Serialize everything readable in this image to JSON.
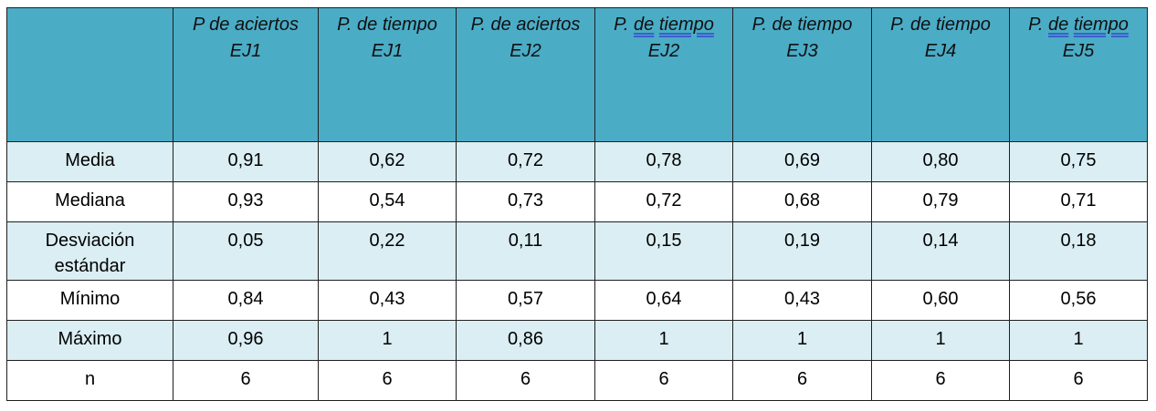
{
  "table": {
    "header": [
      {
        "parts": [
          {
            "text": ""
          }
        ]
      },
      {
        "parts": [
          {
            "text": "P de aciertos EJ1"
          }
        ]
      },
      {
        "parts": [
          {
            "text": "P. de tiempo EJ1"
          }
        ]
      },
      {
        "parts": [
          {
            "text": "P. de aciertos EJ2"
          }
        ]
      },
      {
        "parts": [
          {
            "text": "P. "
          },
          {
            "text": "de",
            "spell": true
          },
          {
            "text": " "
          },
          {
            "text": "tiempo",
            "spell": true
          },
          {
            "text": " EJ2"
          }
        ]
      },
      {
        "parts": [
          {
            "text": "P. de tiempo EJ3"
          }
        ]
      },
      {
        "parts": [
          {
            "text": "P. de tiempo EJ4"
          }
        ]
      },
      {
        "parts": [
          {
            "text": "P. "
          },
          {
            "text": "de",
            "spell": true
          },
          {
            "text": " "
          },
          {
            "text": "tiempo",
            "spell": true
          },
          {
            "text": " EJ5"
          }
        ]
      }
    ],
    "rows": [
      {
        "label": "Media",
        "values": [
          "0,91",
          "0,62",
          "0,72",
          "0,78",
          "0,69",
          "0,80",
          "0,75"
        ]
      },
      {
        "label": "Mediana",
        "values": [
          "0,93",
          "0,54",
          "0,73",
          "0,72",
          "0,68",
          "0,79",
          "0,71"
        ]
      },
      {
        "label": "Desviación estándar",
        "values": [
          "0,05",
          "0,22",
          "0,11",
          "0,15",
          "0,19",
          "0,14",
          "0,18"
        ]
      },
      {
        "label": "Mínimo",
        "values": [
          "0,84",
          "0,43",
          "0,57",
          "0,64",
          "0,43",
          "0,60",
          "0,56"
        ]
      },
      {
        "label": "Máximo",
        "values": [
          "0,96",
          "1",
          "0,86",
          "1",
          "1",
          "1",
          "1"
        ]
      },
      {
        "label": "n",
        "values": [
          "6",
          "6",
          "6",
          "6",
          "6",
          "6",
          "6"
        ]
      }
    ]
  },
  "colors": {
    "header_bg": "#4bacc6",
    "band_bg": "#daeef3",
    "plain_bg": "#ffffff",
    "border": "#1f1f1f",
    "spellcheck_underline": "#3a5fcd"
  }
}
